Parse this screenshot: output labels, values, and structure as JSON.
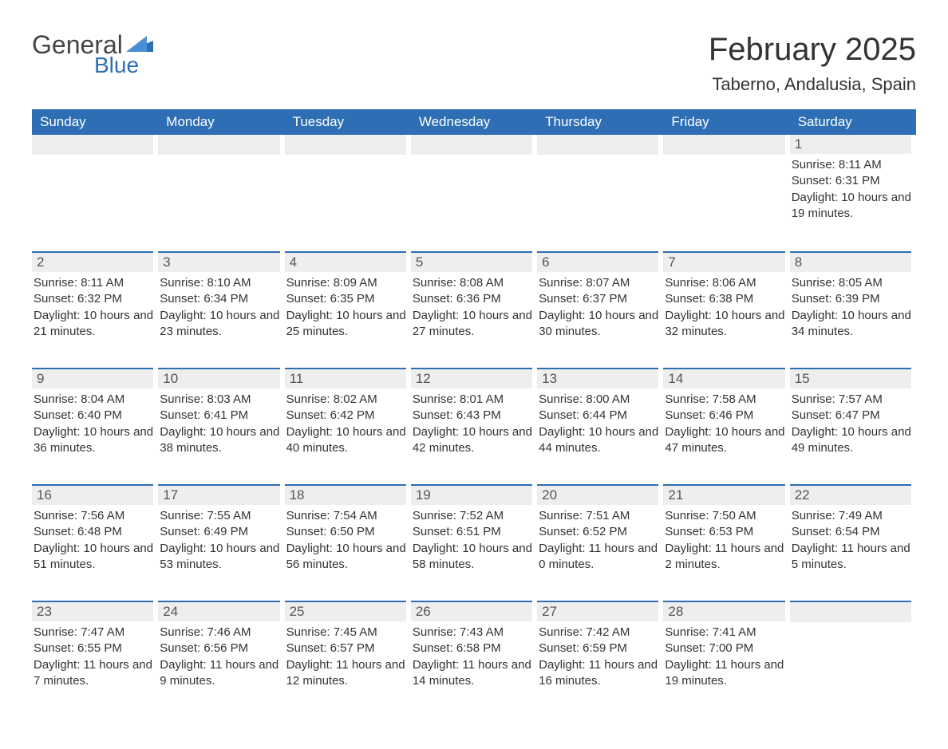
{
  "logo": {
    "general": "General",
    "blue": "Blue"
  },
  "title": "February 2025",
  "location": "Taberno, Andalusia, Spain",
  "colors": {
    "header_bg": "#2d6eb5",
    "header_text": "#ffffff",
    "daynum_bg": "#eeeeee",
    "divider": "#2d6eb5",
    "text": "#333333"
  },
  "day_headers": [
    "Sunday",
    "Monday",
    "Tuesday",
    "Wednesday",
    "Thursday",
    "Friday",
    "Saturday"
  ],
  "weeks": [
    [
      null,
      null,
      null,
      null,
      null,
      null,
      {
        "n": "1",
        "sr": "8:11 AM",
        "ss": "6:31 PM",
        "dl": "10 hours and 19 minutes."
      }
    ],
    [
      {
        "n": "2",
        "sr": "8:11 AM",
        "ss": "6:32 PM",
        "dl": "10 hours and 21 minutes."
      },
      {
        "n": "3",
        "sr": "8:10 AM",
        "ss": "6:34 PM",
        "dl": "10 hours and 23 minutes."
      },
      {
        "n": "4",
        "sr": "8:09 AM",
        "ss": "6:35 PM",
        "dl": "10 hours and 25 minutes."
      },
      {
        "n": "5",
        "sr": "8:08 AM",
        "ss": "6:36 PM",
        "dl": "10 hours and 27 minutes."
      },
      {
        "n": "6",
        "sr": "8:07 AM",
        "ss": "6:37 PM",
        "dl": "10 hours and 30 minutes."
      },
      {
        "n": "7",
        "sr": "8:06 AM",
        "ss": "6:38 PM",
        "dl": "10 hours and 32 minutes."
      },
      {
        "n": "8",
        "sr": "8:05 AM",
        "ss": "6:39 PM",
        "dl": "10 hours and 34 minutes."
      }
    ],
    [
      {
        "n": "9",
        "sr": "8:04 AM",
        "ss": "6:40 PM",
        "dl": "10 hours and 36 minutes."
      },
      {
        "n": "10",
        "sr": "8:03 AM",
        "ss": "6:41 PM",
        "dl": "10 hours and 38 minutes."
      },
      {
        "n": "11",
        "sr": "8:02 AM",
        "ss": "6:42 PM",
        "dl": "10 hours and 40 minutes."
      },
      {
        "n": "12",
        "sr": "8:01 AM",
        "ss": "6:43 PM",
        "dl": "10 hours and 42 minutes."
      },
      {
        "n": "13",
        "sr": "8:00 AM",
        "ss": "6:44 PM",
        "dl": "10 hours and 44 minutes."
      },
      {
        "n": "14",
        "sr": "7:58 AM",
        "ss": "6:46 PM",
        "dl": "10 hours and 47 minutes."
      },
      {
        "n": "15",
        "sr": "7:57 AM",
        "ss": "6:47 PM",
        "dl": "10 hours and 49 minutes."
      }
    ],
    [
      {
        "n": "16",
        "sr": "7:56 AM",
        "ss": "6:48 PM",
        "dl": "10 hours and 51 minutes."
      },
      {
        "n": "17",
        "sr": "7:55 AM",
        "ss": "6:49 PM",
        "dl": "10 hours and 53 minutes."
      },
      {
        "n": "18",
        "sr": "7:54 AM",
        "ss": "6:50 PM",
        "dl": "10 hours and 56 minutes."
      },
      {
        "n": "19",
        "sr": "7:52 AM",
        "ss": "6:51 PM",
        "dl": "10 hours and 58 minutes."
      },
      {
        "n": "20",
        "sr": "7:51 AM",
        "ss": "6:52 PM",
        "dl": "11 hours and 0 minutes."
      },
      {
        "n": "21",
        "sr": "7:50 AM",
        "ss": "6:53 PM",
        "dl": "11 hours and 2 minutes."
      },
      {
        "n": "22",
        "sr": "7:49 AM",
        "ss": "6:54 PM",
        "dl": "11 hours and 5 minutes."
      }
    ],
    [
      {
        "n": "23",
        "sr": "7:47 AM",
        "ss": "6:55 PM",
        "dl": "11 hours and 7 minutes."
      },
      {
        "n": "24",
        "sr": "7:46 AM",
        "ss": "6:56 PM",
        "dl": "11 hours and 9 minutes."
      },
      {
        "n": "25",
        "sr": "7:45 AM",
        "ss": "6:57 PM",
        "dl": "11 hours and 12 minutes."
      },
      {
        "n": "26",
        "sr": "7:43 AM",
        "ss": "6:58 PM",
        "dl": "11 hours and 14 minutes."
      },
      {
        "n": "27",
        "sr": "7:42 AM",
        "ss": "6:59 PM",
        "dl": "11 hours and 16 minutes."
      },
      {
        "n": "28",
        "sr": "7:41 AM",
        "ss": "7:00 PM",
        "dl": "11 hours and 19 minutes."
      },
      null
    ]
  ],
  "labels": {
    "sunrise": "Sunrise:",
    "sunset": "Sunset:",
    "daylight": "Daylight:"
  }
}
